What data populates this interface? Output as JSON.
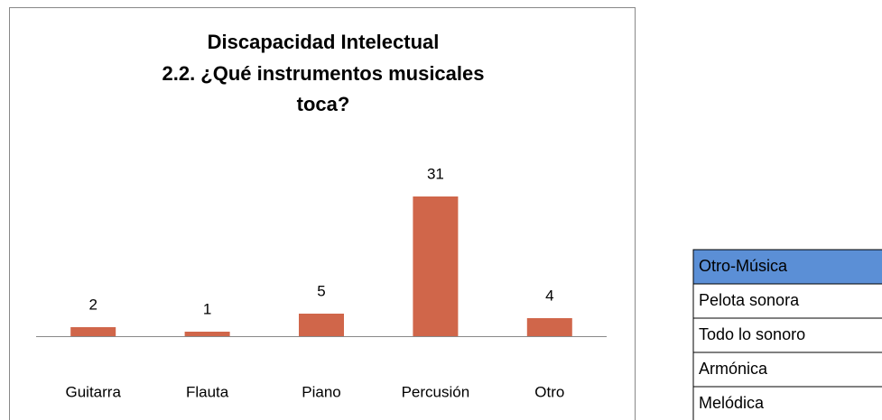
{
  "chart_data": {
    "type": "bar",
    "title": [
      "Discapacidad Intelectual",
      "2.2. ¿Qué instrumentos musicales",
      "toca?"
    ],
    "categories": [
      "Guitarra",
      "Flauta",
      "Piano",
      "Percusión",
      "Otro"
    ],
    "values": [
      2,
      1,
      5,
      31,
      4
    ],
    "color": "#d0664a"
  },
  "table": {
    "header": "Otro-Música",
    "header_color": "#5b8fd6",
    "rows": [
      "Pelota sonora",
      "Todo lo sonoro",
      "Armónica",
      "Melódica"
    ]
  }
}
